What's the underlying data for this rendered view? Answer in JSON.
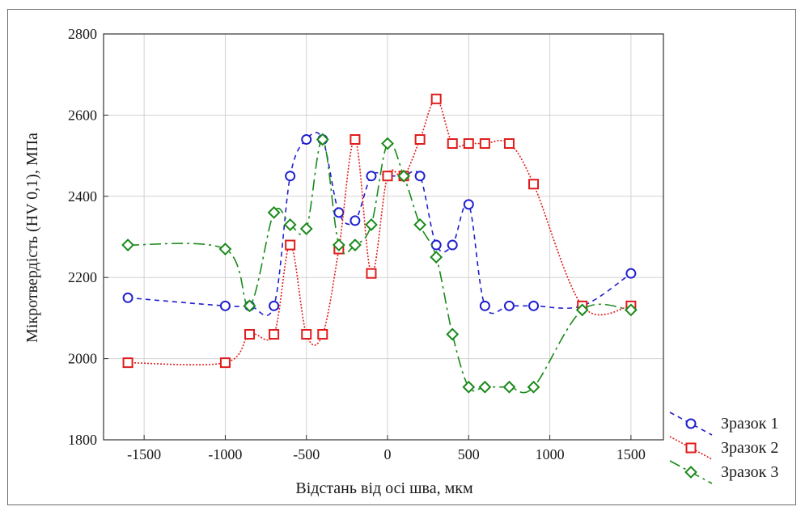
{
  "chart_data": {
    "type": "line",
    "title": "",
    "xlabel": "Відстань від осі шва, мкм",
    "ylabel": "Мікротвердість (HV 0,1), МПа",
    "xlim": [
      -1750,
      1700
    ],
    "ylim": [
      1800,
      2800
    ],
    "xticks": [
      -1500,
      -1000,
      -500,
      0,
      500,
      1000,
      1500
    ],
    "yticks": [
      1800,
      2000,
      2200,
      2400,
      2600,
      2800
    ],
    "grid": true,
    "legend_position": "bottom-right",
    "series": [
      {
        "name": "Зразок 1",
        "color": "#1f1fd0",
        "marker": "circle",
        "dash": "6,5",
        "x": [
          -1600,
          -1000,
          -850,
          -700,
          -600,
          -500,
          -400,
          -300,
          -200,
          -100,
          0,
          100,
          200,
          300,
          400,
          500,
          600,
          750,
          900,
          1200,
          1500
        ],
        "y": [
          2150,
          2130,
          2130,
          2130,
          2450,
          2540,
          2540,
          2360,
          2340,
          2450,
          2450,
          2450,
          2450,
          2280,
          2280,
          2380,
          2130,
          2130,
          2130,
          2130,
          2210
        ]
      },
      {
        "name": "Зразок 2",
        "color": "#e01b1b",
        "marker": "square",
        "dash": "2,2",
        "x": [
          -1600,
          -1000,
          -850,
          -700,
          -600,
          -500,
          -400,
          -300,
          -200,
          -100,
          0,
          100,
          200,
          300,
          400,
          500,
          600,
          750,
          900,
          1200,
          1500
        ],
        "y": [
          1990,
          1990,
          2060,
          2060,
          2280,
          2060,
          2060,
          2270,
          2540,
          2210,
          2450,
          2450,
          2540,
          2640,
          2530,
          2530,
          2530,
          2530,
          2430,
          2130,
          2130
        ]
      },
      {
        "name": "Зразок 3",
        "color": "#1a8a1a",
        "marker": "diamond",
        "dash": "14,5,3,5",
        "x": [
          -1600,
          -1000,
          -850,
          -700,
          -600,
          -500,
          -400,
          -300,
          -200,
          -100,
          0,
          100,
          200,
          300,
          400,
          500,
          600,
          750,
          900,
          1200,
          1500
        ],
        "y": [
          2280,
          2270,
          2130,
          2360,
          2330,
          2320,
          2540,
          2280,
          2280,
          2330,
          2530,
          2450,
          2330,
          2250,
          2060,
          1930,
          1930,
          1930,
          1930,
          2120,
          2120
        ]
      }
    ]
  }
}
